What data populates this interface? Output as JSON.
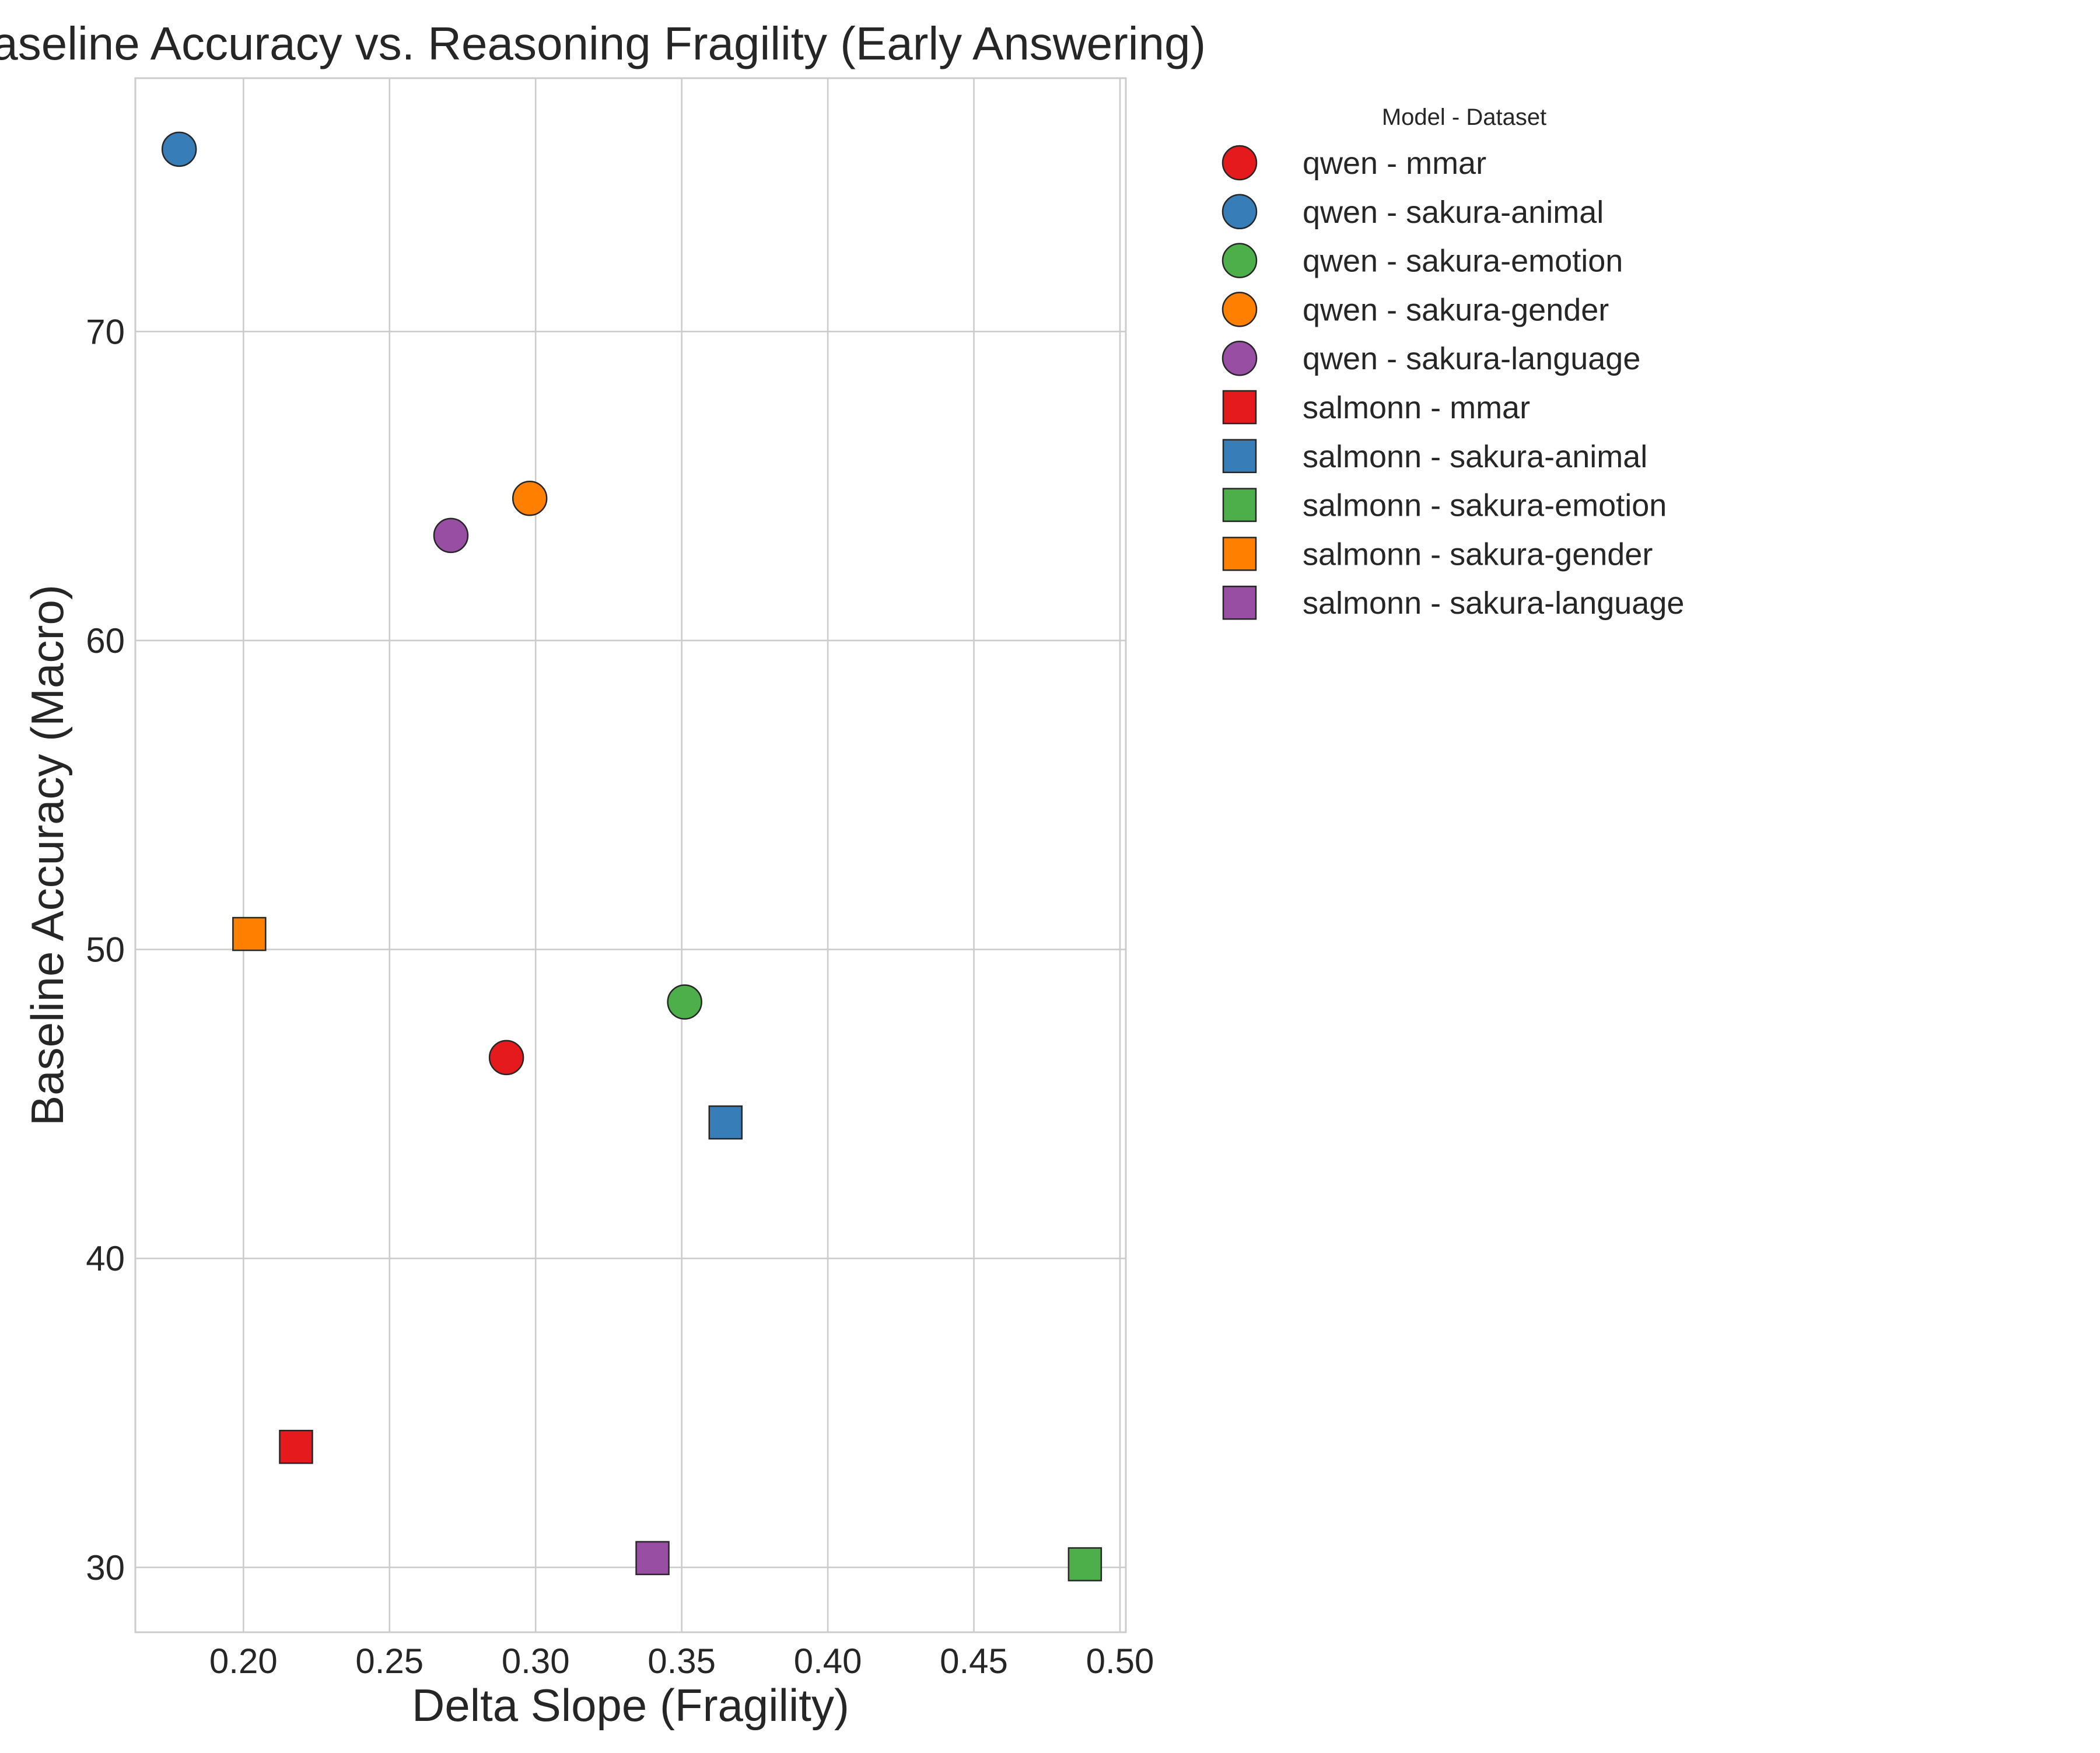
{
  "chart_data": {
    "type": "scatter",
    "title": "Baseline Accuracy vs. Reasoning Fragility (Early Answering)",
    "xlabel": "Delta Slope (Fragility)",
    "ylabel": "Baseline Accuracy (Macro)",
    "xlim": [
      0.163,
      0.502
    ],
    "ylim": [
      27.9,
      78.2
    ],
    "xticks": [
      "0.20",
      "0.25",
      "0.30",
      "0.35",
      "0.40",
      "0.45",
      "0.50"
    ],
    "yticks": [
      "30",
      "40",
      "50",
      "60",
      "70"
    ],
    "grid": true,
    "legend": {
      "title": "Model - Dataset",
      "placement": "outside-right-top"
    },
    "colors": {
      "mmar": "#e41a1c",
      "sakura-animal": "#377eb8",
      "sakura-emotion": "#4daf4a",
      "sakura-gender": "#ff7f00",
      "sakura-language": "#984ea3"
    },
    "marker_shapes": {
      "qwen": "circle",
      "salmonn": "square"
    },
    "series": [
      {
        "name": "qwen - mmar",
        "model": "qwen",
        "dataset": "mmar",
        "color": "#e41a1c",
        "marker": "circle",
        "x": 0.29,
        "y": 46.5
      },
      {
        "name": "qwen - sakura-animal",
        "model": "qwen",
        "dataset": "sakura-animal",
        "color": "#377eb8",
        "marker": "circle",
        "x": 0.178,
        "y": 75.9
      },
      {
        "name": "qwen - sakura-emotion",
        "model": "qwen",
        "dataset": "sakura-emotion",
        "color": "#4daf4a",
        "marker": "circle",
        "x": 0.351,
        "y": 48.3
      },
      {
        "name": "qwen - sakura-gender",
        "model": "qwen",
        "dataset": "sakura-gender",
        "color": "#ff7f00",
        "marker": "circle",
        "x": 0.298,
        "y": 64.6
      },
      {
        "name": "qwen - sakura-language",
        "model": "qwen",
        "dataset": "sakura-language",
        "color": "#984ea3",
        "marker": "circle",
        "x": 0.271,
        "y": 63.4
      },
      {
        "name": "salmonn - mmar",
        "model": "salmonn",
        "dataset": "mmar",
        "color": "#e41a1c",
        "marker": "square",
        "x": 0.218,
        "y": 33.9
      },
      {
        "name": "salmonn - sakura-animal",
        "model": "salmonn",
        "dataset": "sakura-animal",
        "color": "#377eb8",
        "marker": "square",
        "x": 0.365,
        "y": 44.4
      },
      {
        "name": "salmonn - sakura-emotion",
        "model": "salmonn",
        "dataset": "sakura-emotion",
        "color": "#4daf4a",
        "marker": "square",
        "x": 0.488,
        "y": 30.1
      },
      {
        "name": "salmonn - sakura-gender",
        "model": "salmonn",
        "dataset": "sakura-gender",
        "color": "#ff7f00",
        "marker": "square",
        "x": 0.202,
        "y": 50.5
      },
      {
        "name": "salmonn - sakura-language",
        "model": "salmonn",
        "dataset": "sakura-language",
        "color": "#984ea3",
        "marker": "square",
        "x": 0.34,
        "y": 30.3
      }
    ]
  }
}
